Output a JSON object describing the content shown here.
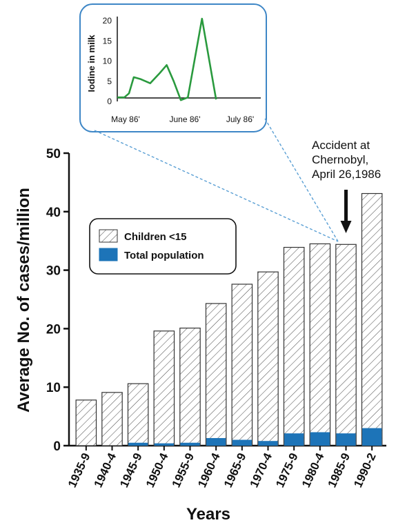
{
  "chart_data": [
    {
      "type": "bar",
      "title": "",
      "xlabel": "Years",
      "ylabel": "Average No. of cases/million",
      "ylim": [
        0,
        50
      ],
      "yticks": [
        0,
        10,
        20,
        30,
        40,
        50
      ],
      "categories": [
        "1935-9",
        "1940-4",
        "1945-9",
        "1950-4",
        "1955-9",
        "1960-4",
        "1965-9",
        "1970-4",
        "1975-9",
        "1980-4",
        "1985-9",
        "1990-2"
      ],
      "series": [
        {
          "name": "Children <15",
          "pattern": "hatched",
          "values": [
            7.8,
            9.1,
            10.6,
            19.6,
            20.1,
            24.3,
            27.6,
            29.7,
            33.9,
            34.5,
            34.4,
            43.1
          ]
        },
        {
          "name": "Total population",
          "color": "#1d74b8",
          "values": [
            0,
            0,
            0.5,
            0.4,
            0.5,
            1.3,
            1.0,
            0.8,
            2.1,
            2.3,
            2.1,
            3.0
          ]
        }
      ],
      "annotation": {
        "lines": [
          "Accident at",
          "Chernobyl,",
          "April 26,1986"
        ],
        "category": "1985-9"
      },
      "legend_position": "upper-left"
    },
    {
      "type": "line",
      "ylabel": "Iodine in milk",
      "xlabel": "",
      "ylim": [
        0,
        20
      ],
      "yticks": [
        0,
        5,
        10,
        15,
        20
      ],
      "xtick_labels": [
        "May 86'",
        "June 86'",
        "July 86'"
      ],
      "xlim": [
        0,
        61
      ],
      "line_color": "#2a9a3e",
      "x": [
        0,
        3,
        5,
        7,
        10,
        14,
        18,
        21,
        24,
        27,
        30,
        36,
        42
      ],
      "y": [
        1,
        1,
        2,
        6,
        5.5,
        4.5,
        7,
        9,
        5,
        0.3,
        1,
        20.5,
        0.5
      ]
    }
  ],
  "colors": {
    "accent": "#1d74b8",
    "inset_border": "#3d86c6",
    "connector": "#5a9fd4",
    "line": "#2a9a3e"
  }
}
